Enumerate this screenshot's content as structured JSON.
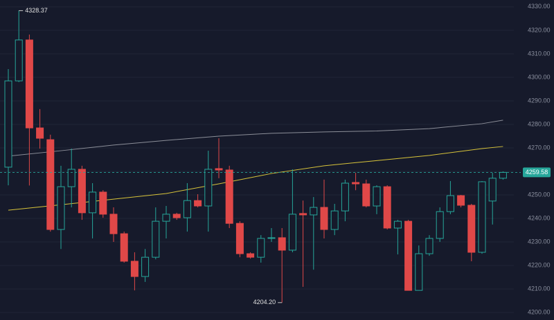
{
  "chart_data": {
    "type": "candlestick",
    "open": [
      4261.8,
      4298.5,
      4315.9,
      4278.5,
      4273.5,
      4235.3,
      4253.5,
      4260.9,
      4242.4,
      4251.2,
      4241.8,
      4233.5,
      4221.8,
      4215.3,
      4223.5,
      4238.8,
      4241.8,
      4240.3,
      4247.6,
      4245.3,
      4261.2,
      4260.6,
      4237.9,
      4225.0,
      4223.5,
      4231.5,
      4231.8,
      4226.5,
      4242.1,
      4241.5,
      4244.7,
      4235.3,
      4243.2,
      4255.3,
      4254.7,
      4245.3,
      4253.5,
      4235.9,
      4238.8,
      4209.4,
      4225.0,
      4231.5,
      4242.9,
      4249.7,
      4245.6,
      4225.6,
      4247.4,
      4257.1
    ],
    "high": [
      4303.5,
      4328.37,
      4318.2,
      4286.5,
      4275.6,
      4262.4,
      4269.7,
      4262.4,
      4255.0,
      4252.0,
      4244.7,
      4234.4,
      4225.6,
      4227.0,
      4244.7,
      4245.3,
      4242.4,
      4255.0,
      4250.3,
      4268.8,
      4274.1,
      4262.4,
      4238.8,
      4225.6,
      4232.9,
      4235.9,
      4235.9,
      4260.9,
      4247.6,
      4249.1,
      4256.5,
      4246.2,
      4256.5,
      4259.4,
      4256.5,
      4254.1,
      4254.1,
      4239.4,
      4239.4,
      4228.5,
      4232.9,
      4244.7,
      4255.9,
      4250.0,
      4246.2,
      4255.9,
      4259.4,
      4260.0
    ],
    "low": [
      4254.1,
      4298.0,
      4254.0,
      4269.7,
      4234.4,
      4227.0,
      4244.7,
      4239.4,
      4231.5,
      4240.3,
      4230.0,
      4221.2,
      4209.4,
      4213.0,
      4222.6,
      4231.5,
      4239.4,
      4234.4,
      4244.7,
      4234.4,
      4257.1,
      4235.9,
      4223.5,
      4222.9,
      4221.2,
      4230.0,
      4204.2,
      4225.6,
      4210.9,
      4218.2,
      4231.5,
      4232.9,
      4238.8,
      4252.0,
      4244.7,
      4241.8,
      4235.3,
      4224.7,
      4209.4,
      4209.4,
      4224.1,
      4230.0,
      4241.8,
      4244.7,
      4221.8,
      4225.0,
      4237.4,
      4256.5
    ],
    "close": [
      4298.5,
      4315.9,
      4278.5,
      4274.1,
      4235.3,
      4253.5,
      4260.9,
      4242.4,
      4251.2,
      4241.8,
      4233.5,
      4221.8,
      4215.3,
      4223.5,
      4238.8,
      4241.8,
      4240.3,
      4247.6,
      4245.3,
      4260.9,
      4260.6,
      4237.9,
      4225.0,
      4223.5,
      4231.5,
      4231.8,
      4226.5,
      4241.8,
      4241.5,
      4244.7,
      4235.3,
      4243.2,
      4255.0,
      4254.7,
      4245.3,
      4253.5,
      4235.9,
      4238.8,
      4209.4,
      4225.0,
      4231.5,
      4242.9,
      4249.7,
      4245.6,
      4225.6,
      4255.6,
      4257.1,
      4259.58
    ],
    "up_color": "#26a69a",
    "down_color": "#e04848",
    "overlays": [
      {
        "color": "#8c8f99",
        "x": [
          0,
          5,
          10,
          15,
          20,
          25,
          30,
          35,
          40,
          45,
          47
        ],
        "values": [
          4266.5,
          4268.8,
          4271.2,
          4273.2,
          4275.0,
          4276.2,
          4276.8,
          4277.2,
          4278.2,
          4280.3,
          4281.8
        ]
      },
      {
        "color": "#d8c43a",
        "x": [
          0,
          5,
          10,
          15,
          20,
          25,
          30,
          35,
          40,
          45,
          47
        ],
        "values": [
          4243.5,
          4245.8,
          4248.2,
          4250.6,
          4254.7,
          4259.1,
          4262.4,
          4264.6,
          4266.8,
          4269.7,
          4270.6
        ]
      }
    ],
    "high_label": "4328.37",
    "low_label": "4204.20",
    "last_label": "4259.58",
    "ylim": [
      4196.8,
      4332.9
    ],
    "yticks": [
      {
        "value": 4200,
        "label": "4200.00"
      },
      {
        "value": 4210,
        "label": "4210.00"
      },
      {
        "value": 4220,
        "label": "4220.00"
      },
      {
        "value": 4230,
        "label": "4230.00"
      },
      {
        "value": 4240,
        "label": "4240.00"
      },
      {
        "value": 4250,
        "label": "4250.00"
      },
      {
        "value": 4260,
        "label": "4260.00"
      },
      {
        "value": 4270,
        "label": "4270.00"
      },
      {
        "value": 4280,
        "label": "4280.00"
      },
      {
        "value": 4290,
        "label": "4290.00"
      },
      {
        "value": 4300,
        "label": "4300.00"
      },
      {
        "value": 4310,
        "label": "4310.00"
      },
      {
        "value": 4320,
        "label": "4320.00"
      },
      {
        "value": 4330,
        "label": "4330.00"
      }
    ],
    "grid": true
  }
}
